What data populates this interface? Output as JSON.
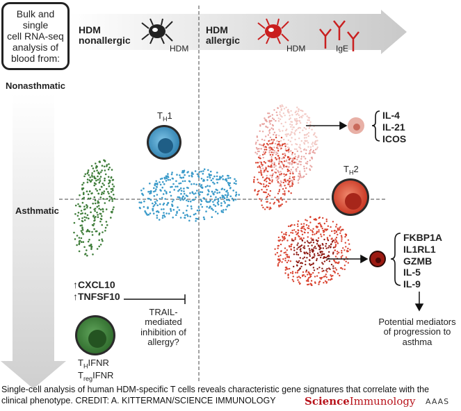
{
  "header": {
    "box_text": [
      "Bulk and single",
      "cell RNA-seq",
      "analysis of",
      "blood from:"
    ],
    "nonallergic_title": [
      "HDM",
      "nonallergic"
    ],
    "allergic_title": [
      "HDM",
      "allergic"
    ],
    "hdm_label_left": "HDM",
    "hdm_label_right": "HDM",
    "ige_label": "IgE"
  },
  "axis": {
    "nonasthmatic": "Nonasthmatic",
    "asthmatic": "Asthmatic"
  },
  "cells": {
    "th1_label": "T",
    "th1_sub": "H",
    "th1_suffix": "1",
    "th2_label": "T",
    "th2_sub": "H",
    "th2_suffix": "2",
    "thifnr_label": "T",
    "thifnr_sub": "H",
    "thifnr_suffix": "IFNR",
    "treg_label": "T",
    "treg_sub": "reg",
    "treg_suffix": "IFNR"
  },
  "genes": {
    "top": [
      "IL-4",
      "IL-21",
      "ICOS"
    ],
    "bottom": [
      "FKBP1A",
      "IL1RL1",
      "GZMB",
      "IL-5",
      "IL-9"
    ],
    "ifnr": [
      "↑CXCL10",
      "↑TNFSF10"
    ]
  },
  "annotations": {
    "trail": [
      "TRAIL-",
      "mediated",
      "inhibition of",
      "allergy?"
    ],
    "potential": [
      "Potential mediators",
      "of progression to",
      "asthma"
    ]
  },
  "caption": {
    "text": "Single-cell analysis of human HDM-specific T cells reveals characteristic gene signatures that correlate with the clinical phenotype. CREDIT: A. KITTERMAN/SCIENCE IMMUNOLOGY",
    "logo_science": "Science",
    "logo_immunology": "Immunology",
    "logo_aaas": "AAAS"
  },
  "colors": {
    "green": "#3f7d3a",
    "blue": "#3a9ac9",
    "pink": "#e8a3a0",
    "red": "#d9422f",
    "darkred": "#8e1a12",
    "arrow_gray": "#d4d4d4"
  }
}
